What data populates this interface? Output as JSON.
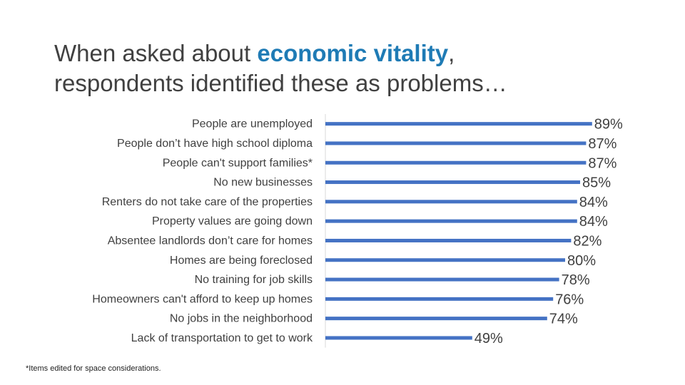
{
  "title": {
    "line1_prefix": "When asked about ",
    "line1_highlight": "economic vitality",
    "line1_suffix": ",",
    "line2": "respondents identified these as problems…"
  },
  "colors": {
    "bar": "#4472c4",
    "highlight": "#1f7bb5",
    "text": "#404040"
  },
  "chart_data": {
    "type": "bar",
    "orientation": "horizontal",
    "categories": [
      "People are unemployed",
      "People don’t have high school diploma",
      "People can't support families*",
      "No new businesses",
      "Renters do not take care of the properties",
      "Property values are going down",
      "Absentee landlords don’t care for homes",
      "Homes are being foreclosed",
      "No training for job skills",
      "Homeowners can't afford to keep up homes",
      "No jobs in the neighborhood",
      "Lack of transportation to get to work"
    ],
    "values": [
      89,
      87,
      87,
      85,
      84,
      84,
      82,
      80,
      78,
      76,
      74,
      49
    ],
    "labels": [
      "89%",
      "87%",
      "87%",
      "85%",
      "84%",
      "84%",
      "82%",
      "80%",
      "78%",
      "76%",
      "74%",
      "49%"
    ],
    "xlim": [
      0,
      100
    ],
    "grid": false,
    "legend": "none"
  },
  "footnote": "*Items edited for space considerations."
}
